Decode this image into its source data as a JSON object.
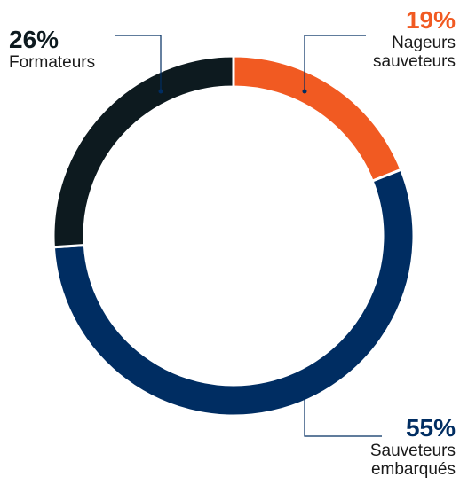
{
  "chart_data": {
    "type": "pie",
    "categories": [
      "Nageurs sauveteurs",
      "Sauveteurs embarqués",
      "Formateurs"
    ],
    "values": [
      19,
      55,
      26
    ],
    "value_labels": [
      "19%",
      "55%",
      "26%"
    ],
    "colors": [
      "#f15a22",
      "#002d62",
      "#0d1a1f"
    ]
  }
}
